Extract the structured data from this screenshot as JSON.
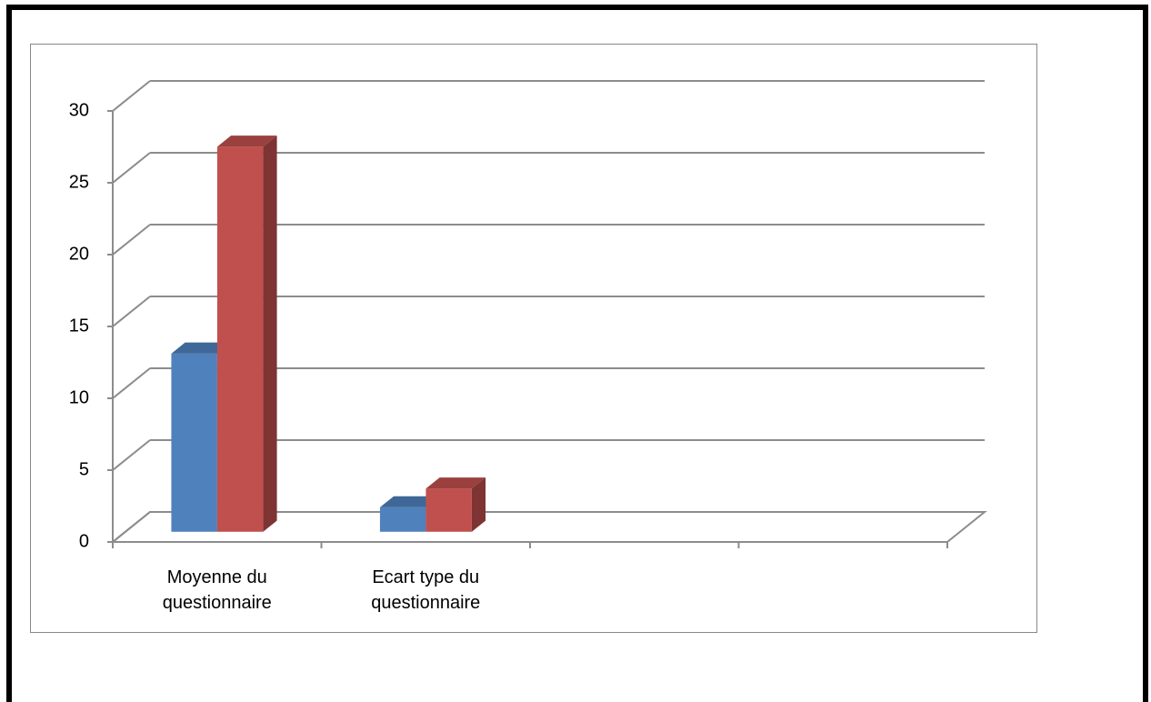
{
  "chart_data": {
    "type": "bar3d",
    "categories": [
      "Moyenne du questionnaire",
      "Ecart type du questionnaire",
      null,
      null
    ],
    "series": [
      {
        "color": "#4f81bd",
        "values": [
          12.4,
          1.7,
          null,
          null
        ]
      },
      {
        "color": "#c0504d",
        "values": [
          26.8,
          3.0,
          null,
          null
        ]
      }
    ],
    "ylim": [
      0,
      30
    ],
    "yticks": [
      0,
      5,
      10,
      15,
      20,
      25,
      30
    ],
    "grid": true
  }
}
